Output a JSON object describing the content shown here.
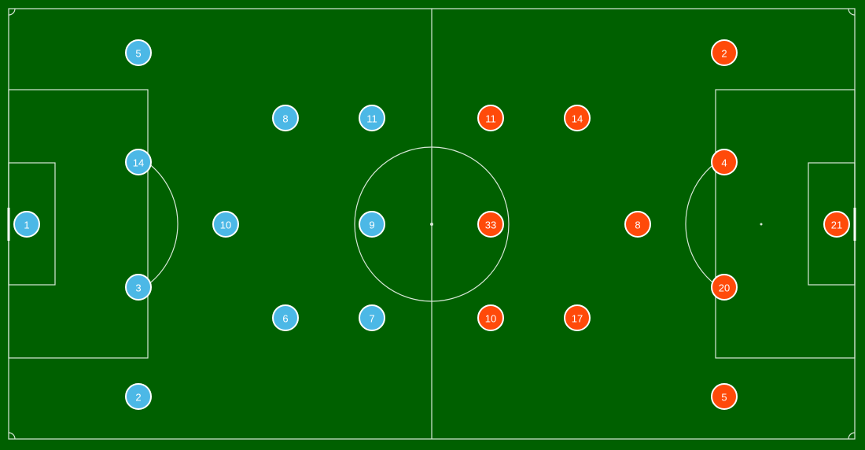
{
  "colors": {
    "pitch": "#006000",
    "lines": "#d8e8d8",
    "home": "#4cb8e6",
    "away": "#ff4a0a",
    "marker_stroke": "#ffffff"
  },
  "home_team": {
    "players": [
      {
        "number": "1"
      },
      {
        "number": "5"
      },
      {
        "number": "14"
      },
      {
        "number": "3"
      },
      {
        "number": "2"
      },
      {
        "number": "10"
      },
      {
        "number": "8"
      },
      {
        "number": "6"
      },
      {
        "number": "11"
      },
      {
        "number": "9"
      },
      {
        "number": "7"
      }
    ]
  },
  "away_team": {
    "players": [
      {
        "number": "11"
      },
      {
        "number": "33"
      },
      {
        "number": "10"
      },
      {
        "number": "14"
      },
      {
        "number": "17"
      },
      {
        "number": "8"
      },
      {
        "number": "2"
      },
      {
        "number": "4"
      },
      {
        "number": "20"
      },
      {
        "number": "5"
      },
      {
        "number": "21"
      }
    ]
  }
}
